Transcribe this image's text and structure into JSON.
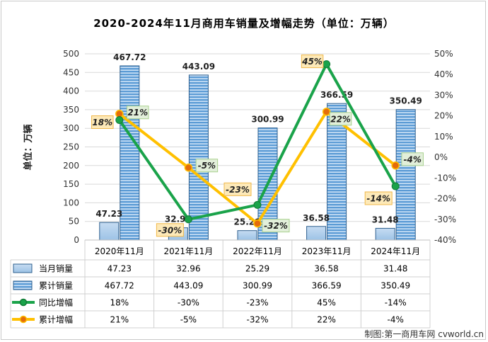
{
  "chart_data": {
    "type": "bar",
    "title": "2020-2024年11月商用车销量及增幅走势（单位：万辆）",
    "ylabel": "单位：万辆",
    "ylim": [
      0,
      500
    ],
    "y_ticks": [
      "0",
      "50",
      "100",
      "150",
      "200",
      "250",
      "300",
      "350",
      "400",
      "450",
      "500"
    ],
    "y2lim": [
      -40,
      50
    ],
    "y2_ticks": [
      "-40%",
      "-30%",
      "-20%",
      "-10%",
      "0%",
      "10%",
      "20%",
      "30%",
      "40%",
      "50%"
    ],
    "categories": [
      "2020年11月",
      "2021年11月",
      "2022年11月",
      "2023年11月",
      "2024年11月"
    ],
    "bar_series": [
      {
        "name": "当月销量",
        "values": [
          47.23,
          32.96,
          25.29,
          36.58,
          31.48
        ],
        "labels": [
          "47.23",
          "32.96",
          "25.29",
          "36.58",
          "31.48"
        ],
        "color": "#9dc3e6"
      },
      {
        "name": "累计销量",
        "values": [
          467.72,
          443.09,
          300.99,
          366.59,
          350.49
        ],
        "labels": [
          "467.72",
          "443.09",
          "300.99",
          "366.59",
          "350.49"
        ],
        "color": "#5b9bd5"
      }
    ],
    "line_series": [
      {
        "name": "同比增幅",
        "values": [
          18,
          -30,
          -23,
          45,
          -14
        ],
        "labels": [
          "18%",
          "-30%",
          "-23%",
          "45%",
          "-14%"
        ],
        "color": "#1aa34a"
      },
      {
        "name": "累计增幅",
        "values": [
          21,
          -5,
          -32,
          22,
          -4
        ],
        "labels": [
          "21%",
          "-5%",
          "-32%",
          "22%",
          "-4%"
        ],
        "color": "#ffc000"
      }
    ],
    "credit": "制图:第一商用车网 cvworld.cn"
  },
  "colors": {
    "month_bar": "#9dc3e6",
    "cum_bar": "#5b9bd5",
    "yoy_line": "#1aa34a",
    "cum_line": "#ffc000",
    "marker_fill": "#e46c0a"
  }
}
